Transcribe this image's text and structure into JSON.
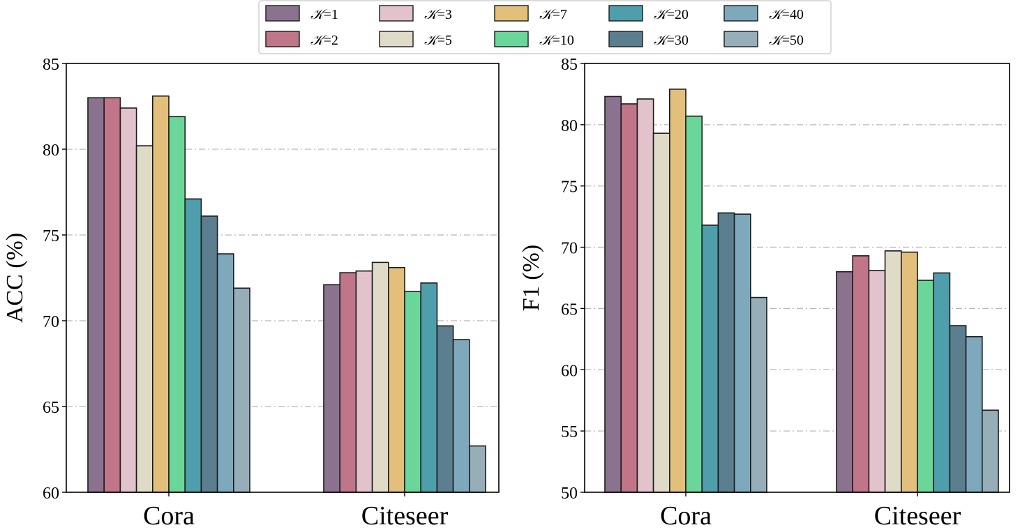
{
  "chart_data": [
    {
      "type": "bar",
      "title": "",
      "xlabel": "",
      "ylabel": "ACC (%)",
      "ylim": [
        60,
        85
      ],
      "yticks": [
        60,
        65,
        70,
        75,
        80,
        85
      ],
      "grid": "horizontal dash-dot",
      "categories": [
        "Cora",
        "Citeseer"
      ],
      "series": [
        {
          "name": "K=1",
          "values": [
            83.0,
            72.1
          ]
        },
        {
          "name": "K=2",
          "values": [
            83.0,
            72.8
          ]
        },
        {
          "name": "K=3",
          "values": [
            82.4,
            72.9
          ]
        },
        {
          "name": "K=5",
          "values": [
            80.2,
            73.4
          ]
        },
        {
          "name": "K=7",
          "values": [
            83.1,
            73.1
          ]
        },
        {
          "name": "K=10",
          "values": [
            81.9,
            71.7
          ]
        },
        {
          "name": "K=20",
          "values": [
            77.1,
            72.2
          ]
        },
        {
          "name": "K=30",
          "values": [
            76.1,
            69.7
          ]
        },
        {
          "name": "K=40",
          "values": [
            73.9,
            68.9
          ]
        },
        {
          "name": "K=50",
          "values": [
            71.9,
            62.7
          ]
        }
      ]
    },
    {
      "type": "bar",
      "title": "",
      "xlabel": "",
      "ylabel": "F1 (%)",
      "ylim": [
        50,
        85
      ],
      "yticks": [
        50,
        55,
        60,
        65,
        70,
        75,
        80,
        85
      ],
      "grid": "horizontal dash-dot",
      "categories": [
        "Cora",
        "Citeseer"
      ],
      "series": [
        {
          "name": "K=1",
          "values": [
            82.3,
            68.0
          ]
        },
        {
          "name": "K=2",
          "values": [
            81.7,
            69.3
          ]
        },
        {
          "name": "K=3",
          "values": [
            82.1,
            68.1
          ]
        },
        {
          "name": "K=5",
          "values": [
            79.3,
            69.7
          ]
        },
        {
          "name": "K=7",
          "values": [
            82.9,
            69.6
          ]
        },
        {
          "name": "K=10",
          "values": [
            80.7,
            67.3
          ]
        },
        {
          "name": "K=20",
          "values": [
            71.8,
            67.9
          ]
        },
        {
          "name": "K=30",
          "values": [
            72.8,
            63.6
          ]
        },
        {
          "name": "K=40",
          "values": [
            72.7,
            62.7
          ]
        },
        {
          "name": "K=50",
          "values": [
            65.9,
            56.7
          ]
        }
      ]
    }
  ],
  "legend": {
    "position": "top-center",
    "symbol": "𝒦",
    "items": [
      {
        "symbol": "𝒦",
        "value": "=1"
      },
      {
        "symbol": "𝒦",
        "value": "=2"
      },
      {
        "symbol": "𝒦",
        "value": "=3"
      },
      {
        "symbol": "𝒦",
        "value": "=5"
      },
      {
        "symbol": "𝒦",
        "value": "=7"
      },
      {
        "symbol": "𝒦",
        "value": "=10"
      },
      {
        "symbol": "𝒦",
        "value": "=20"
      },
      {
        "symbol": "𝒦",
        "value": "=30"
      },
      {
        "symbol": "𝒦",
        "value": "=40"
      },
      {
        "symbol": "𝒦",
        "value": "=50"
      }
    ]
  },
  "colors": {
    "series": [
      "#8b7390",
      "#c17589",
      "#e3c3cb",
      "#dfdbc7",
      "#e2c07b",
      "#6bd699",
      "#4e9fab",
      "#5c7f8f",
      "#7ea9bd",
      "#96aeb8"
    ],
    "grid": "#b8b8b8",
    "edge": "#1a1a1a"
  }
}
